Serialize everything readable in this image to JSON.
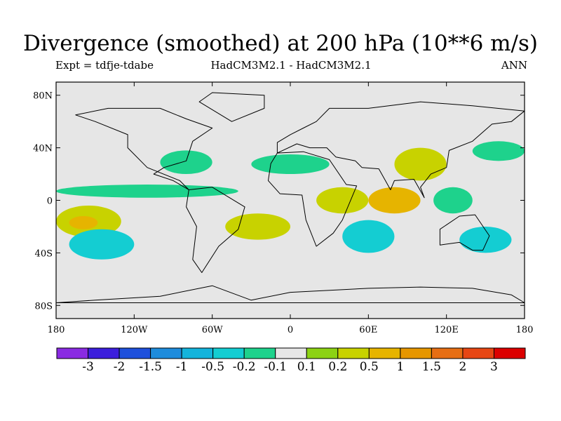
{
  "figure": {
    "title": "Divergence (smoothed) at 200 hPa (10**6 m/s)",
    "experiment": "Expt = tdfje-tdabe",
    "models": "HadCM3M2.1 - HadCM3M2.1",
    "period": "ANN"
  },
  "map_data": {
    "type": "heatmap",
    "projection": "cylindrical equidistant",
    "lon_range": [
      -180,
      180
    ],
    "lat_range": [
      -90,
      90
    ],
    "background_color": "#e6e6e6",
    "lat_ticks": [
      "80N",
      "40N",
      "0",
      "40S",
      "80S"
    ],
    "lat_tick_values": [
      80,
      40,
      0,
      -40,
      -80
    ],
    "lon_ticks": [
      "180",
      "120W",
      "60W",
      "0",
      "60E",
      "120E",
      "180"
    ],
    "lon_tick_values": [
      -180,
      -120,
      -60,
      0,
      60,
      120,
      180
    ],
    "regions": [
      {
        "lon": [
          -180,
          -130
        ],
        "lat": [
          -28,
          -4
        ],
        "level": "0.2 to 0.5"
      },
      {
        "lon": [
          -170,
          -148
        ],
        "lat": [
          -22,
          -12
        ],
        "level": "0.5 to 1"
      },
      {
        "lon": [
          -170,
          -120
        ],
        "lat": [
          -45,
          -22
        ],
        "level": "-0.5 to -0.2"
      },
      {
        "lon": [
          -180,
          -40
        ],
        "lat": [
          2,
          12
        ],
        "level": "-0.2 to -0.1"
      },
      {
        "lon": [
          -100,
          -60
        ],
        "lat": [
          20,
          38
        ],
        "level": "-0.2 to -0.1"
      },
      {
        "lon": [
          -50,
          0
        ],
        "lat": [
          -30,
          -10
        ],
        "level": "0.2 to 0.5"
      },
      {
        "lon": [
          -30,
          30
        ],
        "lat": [
          20,
          35
        ],
        "level": "-0.2 to -0.1"
      },
      {
        "lon": [
          20,
          60
        ],
        "lat": [
          -10,
          10
        ],
        "level": "0.2 to 0.5"
      },
      {
        "lon": [
          60,
          100
        ],
        "lat": [
          -10,
          10
        ],
        "level": "0.5 to 1"
      },
      {
        "lon": [
          40,
          80
        ],
        "lat": [
          -40,
          -15
        ],
        "level": "-0.5 to -0.2"
      },
      {
        "lon": [
          80,
          120
        ],
        "lat": [
          15,
          40
        ],
        "level": "0.2 to 0.5"
      },
      {
        "lon": [
          110,
          140
        ],
        "lat": [
          -10,
          10
        ],
        "level": "-0.2 to -0.1"
      },
      {
        "lon": [
          130,
          170
        ],
        "lat": [
          -40,
          -20
        ],
        "level": "-0.5 to -0.2"
      },
      {
        "lon": [
          140,
          180
        ],
        "lat": [
          30,
          45
        ],
        "level": "-0.2 to -0.1"
      }
    ]
  },
  "colorbar": {
    "colors": [
      "#8a2be2",
      "#3c1edc",
      "#1e50dc",
      "#1e8cdc",
      "#14b4dc",
      "#14cdd2",
      "#1ed28c",
      "#e6e6e6",
      "#8cd214",
      "#c8d200",
      "#e6b400",
      "#e69600",
      "#e66e14",
      "#e64614",
      "#dc0000"
    ],
    "labels": [
      "-3",
      "-2",
      "-1.5",
      "-1",
      "-0.5",
      "-0.2",
      "-0.1",
      "0.1",
      "0.2",
      "0.5",
      "1",
      "1.5",
      "2",
      "3"
    ]
  },
  "level_colors": {
    "-0.5 to -0.2": "#14cdd2",
    "-0.2 to -0.1": "#1ed28c",
    "0.2 to 0.5": "#c8d200",
    "0.5 to 1": "#e6b400"
  }
}
